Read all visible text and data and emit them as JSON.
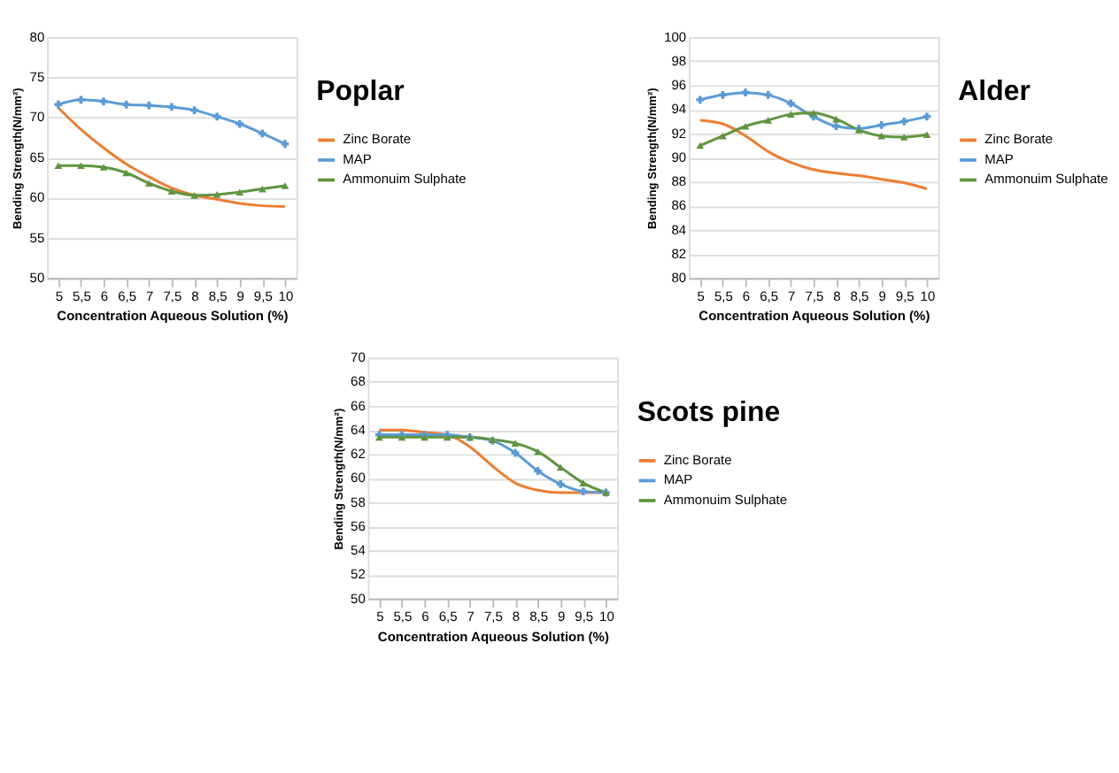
{
  "chart_data": [
    {
      "type": "line",
      "legend_title": "Poplar",
      "xlabel": "Concentration Aqueous Solution (%)",
      "ylabel": "Bending Strength(N/mm²)",
      "categories": [
        "5",
        "5,5",
        "6",
        "6,5",
        "7",
        "7,5",
        "8",
        "8,5",
        "9",
        "9,5",
        "10"
      ],
      "ylim": [
        50,
        80
      ],
      "yticks": [
        50,
        55,
        60,
        65,
        70,
        75,
        80
      ],
      "grid": "y",
      "legend": "right",
      "series": [
        {
          "name": "Zinc Borate",
          "color": "#ed7d31",
          "marker": "none",
          "values": [
            71.2,
            68.5,
            66.2,
            64.2,
            62.6,
            61.2,
            60.3,
            59.8,
            59.3,
            59.0,
            58.9
          ]
        },
        {
          "name": "MAP",
          "color": "#5b9bd5",
          "marker": "cross",
          "values": [
            71.6,
            72.2,
            72.0,
            71.6,
            71.5,
            71.3,
            70.9,
            70.1,
            69.2,
            68.0,
            66.7
          ]
        },
        {
          "name": "Ammonuim Sulphate",
          "color": "#5f9440",
          "marker": "triangle",
          "values": [
            64.0,
            64.0,
            63.8,
            63.1,
            61.8,
            60.8,
            60.3,
            60.4,
            60.7,
            61.1,
            61.5
          ]
        }
      ]
    },
    {
      "type": "line",
      "legend_title": "Alder",
      "xlabel": "Concentration  Aqueous Solution (%)",
      "ylabel": "Bending Strength(N/mm²)",
      "categories": [
        "5",
        "5,5",
        "6",
        "6,5",
        "7",
        "7,5",
        "8",
        "8,5",
        "9",
        "9,5",
        "10"
      ],
      "ylim": [
        80,
        100
      ],
      "yticks": [
        80,
        82,
        84,
        86,
        88,
        90,
        92,
        94,
        96,
        98,
        100
      ],
      "grid": "y",
      "legend": "right",
      "series": [
        {
          "name": "Zinc Borate",
          "color": "#ed7d31",
          "marker": "none",
          "values": [
            93.1,
            92.8,
            91.8,
            90.5,
            89.6,
            89.0,
            88.7,
            88.5,
            88.2,
            87.9,
            87.4
          ]
        },
        {
          "name": "MAP",
          "color": "#5b9bd5",
          "marker": "cross",
          "values": [
            94.8,
            95.2,
            95.4,
            95.2,
            94.5,
            93.4,
            92.6,
            92.4,
            92.7,
            93.0,
            93.4
          ]
        },
        {
          "name": "Ammonuim Sulphate",
          "color": "#5f9440",
          "marker": "triangle",
          "values": [
            91.0,
            91.8,
            92.6,
            93.1,
            93.6,
            93.7,
            93.2,
            92.3,
            91.8,
            91.7,
            91.9
          ]
        }
      ]
    },
    {
      "type": "line",
      "legend_title": "Scots pine",
      "xlabel": "Concentration Aqueous Solution (%)",
      "ylabel": "Bending Strength(N/mm²)",
      "categories": [
        "5",
        "5,5",
        "6",
        "6,5",
        "7",
        "7,5",
        "8",
        "8,5",
        "9",
        "9,5",
        "10"
      ],
      "ylim": [
        50,
        70
      ],
      "yticks": [
        50,
        52,
        54,
        56,
        58,
        60,
        62,
        64,
        66,
        68,
        70
      ],
      "grid": "y",
      "legend": "right",
      "series": [
        {
          "name": "Zinc Borate",
          "color": "#ed7d31",
          "marker": "none",
          "values": [
            64.0,
            64.0,
            63.8,
            63.6,
            62.6,
            61.0,
            59.6,
            59.0,
            58.8,
            58.8,
            58.8
          ]
        },
        {
          "name": "MAP",
          "color": "#5b9bd5",
          "marker": "cross",
          "values": [
            63.6,
            63.6,
            63.6,
            63.6,
            63.4,
            63.1,
            62.1,
            60.6,
            59.5,
            58.9,
            58.8
          ]
        },
        {
          "name": "Ammonuim Sulphate",
          "color": "#5f9440",
          "marker": "triangle",
          "values": [
            63.4,
            63.4,
            63.4,
            63.4,
            63.4,
            63.2,
            62.9,
            62.2,
            60.9,
            59.6,
            58.8
          ]
        }
      ]
    }
  ]
}
